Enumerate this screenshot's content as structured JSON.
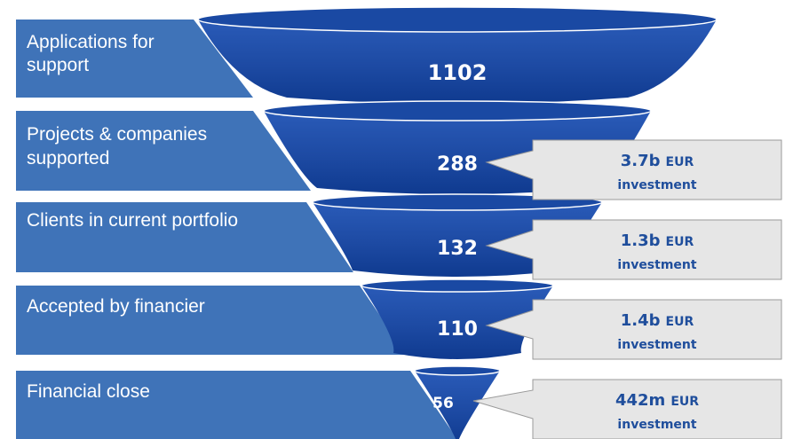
{
  "colors": {
    "label_band": "#3f73b8",
    "funnel_dark": "#0f3a8f",
    "funnel_light": "#2a5bb8",
    "funnel_rim": "#1a49a3",
    "callout_fill": "#e6e6e6",
    "callout_stroke": "#9a9a9a",
    "callout_text": "#1f4e9c"
  },
  "stages": [
    {
      "label_lines": [
        "Applications for",
        "support"
      ],
      "value": "1102"
    },
    {
      "label_lines": [
        "Projects & companies",
        "supported"
      ],
      "value": "288"
    },
    {
      "label_lines": [
        "Clients in current portfolio"
      ],
      "value": "132"
    },
    {
      "label_lines": [
        "Accepted by financier"
      ],
      "value": "110"
    },
    {
      "label_lines": [
        "Financial close"
      ],
      "value": "56"
    }
  ],
  "callouts": [
    {
      "amount": "3.7b",
      "unit": "EUR",
      "caption": "investment"
    },
    {
      "amount": "1.3b",
      "unit": "EUR",
      "caption": "investment"
    },
    {
      "amount": "1.4b",
      "unit": "EUR",
      "caption": "investment"
    },
    {
      "amount": "442m",
      "unit": "EUR",
      "caption": "investment"
    }
  ]
}
